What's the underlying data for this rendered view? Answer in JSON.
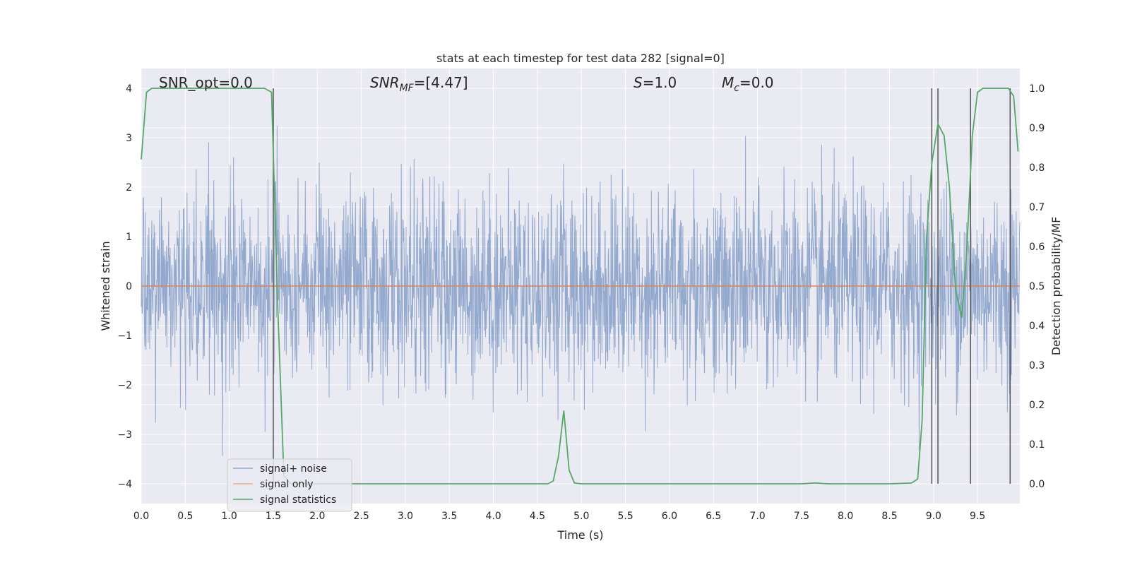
{
  "chart_data": {
    "type": "line",
    "title": "stats at each timestep for test data 282 [signal=0]",
    "xlabel": "Time (s)",
    "ylabel": "Whitened strain",
    "ylabel_right": "Detection probability/MF",
    "xlim": [
      0.0,
      9.98
    ],
    "ylim": [
      -4.4,
      4.4
    ],
    "ylim_right": [
      -0.05,
      1.05
    ],
    "xticks": [
      "0.0",
      "0.5",
      "1.0",
      "1.5",
      "2.0",
      "2.5",
      "3.0",
      "3.5",
      "4.0",
      "4.5",
      "5.0",
      "5.5",
      "6.0",
      "6.5",
      "7.0",
      "7.5",
      "8.0",
      "8.5",
      "9.0",
      "9.5"
    ],
    "yticks": [
      "4",
      "3",
      "2",
      "1",
      "0",
      "−1",
      "−2",
      "−3",
      "−4"
    ],
    "yticks_right": [
      "1.0",
      "0.9",
      "0.8",
      "0.7",
      "0.6",
      "0.5",
      "0.4",
      "0.3",
      "0.2",
      "0.1",
      "0.0"
    ],
    "grid": true,
    "annotations": {
      "snr_opt": "SNR_opt=0.0",
      "snr_mf_main": "SNR",
      "snr_mf_sub": "MF",
      "snr_mf_value": "=[4.47]",
      "s_var": "S",
      "s_value": "=1.0",
      "mc_var": "M",
      "mc_sub": "c",
      "mc_value": "=0.0"
    },
    "legend": {
      "placement": "lower-left",
      "entries": [
        "signal+ noise",
        "signal only",
        "signal statistics"
      ]
    },
    "colors": {
      "background": "#EAEAF2",
      "noise": "#4C72B0",
      "signal_only": "#DD8452",
      "statistics": "#55A868",
      "vline": "#555555"
    },
    "series": [
      {
        "name": "signal+ noise",
        "description_kind": "whitened strain noise, roughly standard-normal, sampled densely over 0–9.98 s",
        "envelope_std": 1.0
      },
      {
        "name": "signal only",
        "x": [
          0.0,
          9.98
        ],
        "y": [
          0.0,
          0.0
        ]
      },
      {
        "name": "signal statistics",
        "x": [
          0.0,
          0.06,
          0.12,
          0.2,
          0.3,
          0.4,
          0.5,
          0.6,
          0.7,
          0.8,
          0.9,
          1.0,
          1.1,
          1.2,
          1.3,
          1.4,
          1.48,
          1.55,
          1.62,
          1.7,
          1.8,
          2.0,
          2.5,
          3.0,
          3.5,
          4.0,
          4.5,
          4.62,
          4.68,
          4.74,
          4.8,
          4.86,
          4.92,
          5.0,
          5.5,
          6.0,
          6.5,
          7.0,
          7.5,
          7.65,
          7.8,
          8.0,
          8.5,
          8.75,
          8.82,
          8.87,
          8.92,
          8.98,
          9.05,
          9.12,
          9.18,
          9.25,
          9.32,
          9.38,
          9.44,
          9.5,
          9.56,
          9.62,
          9.7,
          9.78,
          9.85,
          9.91,
          9.96
        ],
        "y": [
          0.82,
          0.99,
          1.0,
          1.0,
          1.0,
          1.0,
          1.0,
          1.0,
          1.0,
          1.0,
          1.0,
          1.0,
          1.0,
          1.0,
          1.0,
          1.0,
          0.99,
          0.45,
          0.02,
          0.0,
          0.0,
          0.0,
          0.0,
          0.0,
          0.0,
          0.0,
          0.0,
          0.0,
          0.007,
          0.07,
          0.185,
          0.035,
          0.002,
          0.0,
          0.0,
          0.0,
          0.0,
          0.0,
          0.0,
          0.002,
          0.0,
          0.0,
          0.0,
          0.002,
          0.012,
          0.16,
          0.62,
          0.81,
          0.91,
          0.88,
          0.75,
          0.49,
          0.42,
          0.6,
          0.88,
          0.99,
          1.0,
          1.0,
          1.0,
          1.0,
          1.0,
          0.98,
          0.84
        ]
      }
    ],
    "vlines": [
      1.5,
      8.98,
      9.05,
      9.42,
      9.87
    ]
  }
}
